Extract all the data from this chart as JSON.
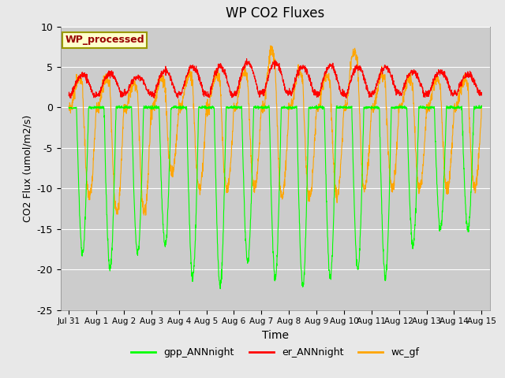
{
  "title": "WP CO2 Fluxes",
  "xlabel": "Time",
  "ylabel_display": "CO2 Flux (umol/m2/s)",
  "xlim_days": [
    -0.3,
    15.3
  ],
  "ylim": [
    -25,
    10
  ],
  "yticks": [
    -25,
    -20,
    -15,
    -10,
    -5,
    0,
    5,
    10
  ],
  "xtick_labels": [
    "Jul 31",
    "Aug 1",
    "Aug 2",
    "Aug 3",
    "Aug 4",
    "Aug 5",
    "Aug 6",
    "Aug 7",
    "Aug 8",
    "Aug 9",
    "Aug 10",
    "Aug 11",
    "Aug 12",
    "Aug 13",
    "Aug 14",
    "Aug 15"
  ],
  "xtick_positions": [
    0,
    1,
    2,
    3,
    4,
    5,
    6,
    7,
    8,
    9,
    10,
    11,
    12,
    13,
    14,
    15
  ],
  "gpp_color": "#00FF00",
  "er_color": "#FF0000",
  "wc_color": "#FFA500",
  "fig_bg_color": "#E8E8E8",
  "plot_bg_color": "#CCCCCC",
  "label_box_facecolor": "#FFFFCC",
  "label_box_edgecolor": "#999900",
  "label_text_color": "#990000",
  "label_text": "WP_processed",
  "legend_labels": [
    "gpp_ANNnight",
    "er_ANNnight",
    "wc_gf"
  ],
  "n_points_per_day": 144,
  "days": 15,
  "gpp_amplitudes": [
    -18,
    -20,
    -18,
    -17,
    -21,
    -22,
    -19,
    -21,
    -22,
    -21,
    -20,
    -21,
    -17,
    -15,
    -15
  ],
  "er_peaks": [
    4,
    4.2,
    3.8,
    4.5,
    5.0,
    5.0,
    5.5,
    5.5,
    5.0,
    5.2,
    5.0,
    5.0,
    4.5,
    4.5,
    4.0
  ],
  "wc_neg_amplitudes": [
    -11,
    -13,
    -13,
    -8,
    -10,
    -10,
    -10,
    -11,
    -11,
    -11,
    -10,
    -10,
    -10,
    -10,
    -10
  ],
  "wc_pos_peaks": [
    3.5,
    3.5,
    3.0,
    3.5,
    4.0,
    4.0,
    4.5,
    7.0,
    4.5,
    4.0,
    7.0,
    4.0,
    3.5,
    3.5,
    3.5
  ]
}
